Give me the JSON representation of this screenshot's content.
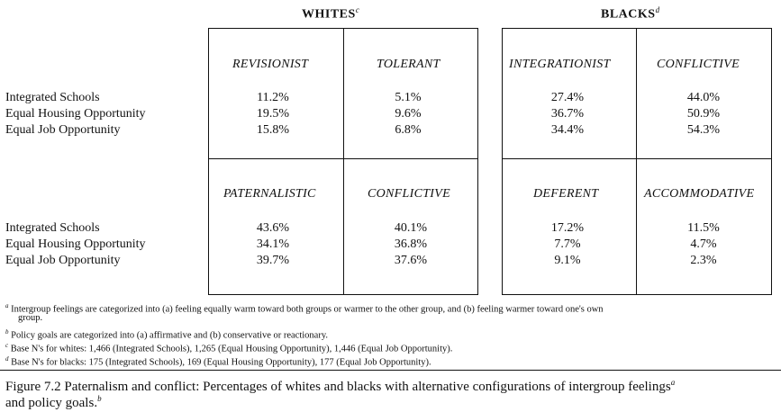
{
  "headers": {
    "whites": {
      "label": "WHITES",
      "sup": "c"
    },
    "blacks": {
      "label": "BLACKS",
      "sup": "d"
    }
  },
  "row_labels": [
    "Integrated Schools",
    "Equal Housing Opportunity",
    "Equal Job Opportunity"
  ],
  "top": {
    "revisionist": {
      "label": "REVISIONIST",
      "values": [
        "11.2%",
        "19.5%",
        "15.8%"
      ]
    },
    "tolerant": {
      "label": "TOLERANT",
      "values": [
        "5.1%",
        "9.6%",
        "6.8%"
      ]
    },
    "integrationist": {
      "label": "INTEGRATIONIST",
      "values": [
        "27.4%",
        "36.7%",
        "34.4%"
      ]
    },
    "conflictive_b": {
      "label": "CONFLICTIVE",
      "values": [
        "44.0%",
        "50.9%",
        "54.3%"
      ]
    }
  },
  "bottom": {
    "paternalistic": {
      "label": "PATERNALISTIC",
      "values": [
        "43.6%",
        "34.1%",
        "39.7%"
      ]
    },
    "conflictive_w": {
      "label": "CONFLICTIVE",
      "values": [
        "40.1%",
        "36.8%",
        "37.6%"
      ]
    },
    "deferent": {
      "label": "DEFERENT",
      "values": [
        "17.2%",
        "7.7%",
        "9.1%"
      ]
    },
    "accommodative": {
      "label": "ACCOMMODATIVE",
      "values": [
        "11.5%",
        "4.7%",
        "2.3%"
      ]
    }
  },
  "footnotes": {
    "a": {
      "mark": "a",
      "line1": "Intergroup feelings are categorized into (a) feeling equally warm toward both groups or warmer to the other group, and (b) feeling warmer toward one's own",
      "line2": "group."
    },
    "b": {
      "mark": "b",
      "text": "Policy goals are categorized into (a) affirmative and (b) conservative or reactionary."
    },
    "c": {
      "mark": "c",
      "text": "Base N's for whites: 1,466 (Integrated Schools), 1,265 (Equal Housing Opportunity), 1,446 (Equal Job Opportunity)."
    },
    "d": {
      "mark": "d",
      "text": "Base N's for blacks: 175 (Integrated Schools), 169 (Equal Housing Opportunity), 177 (Equal Job Opportunity)."
    }
  },
  "caption": {
    "line1": "Figure 7.2  Paternalism and conflict: Percentages of whites and blacks with alternative configurations of intergroup feelings",
    "sup1": "a",
    "line2": "and policy goals.",
    "sup2": "b"
  }
}
